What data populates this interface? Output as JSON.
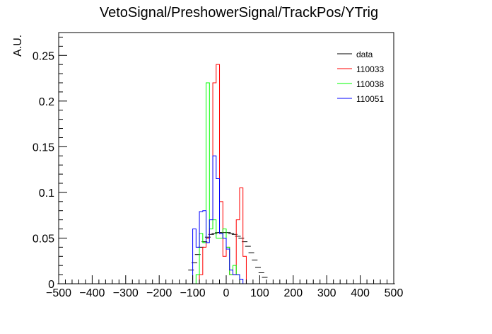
{
  "chart_data": {
    "type": "histogram",
    "title": "VetoSignal/PreshowerSignal/TrackPos/YTrig",
    "ylabel": "A.U.",
    "xlabel": "",
    "xlim": [
      -500,
      500
    ],
    "ylim": [
      0,
      0.275
    ],
    "bin_width": 10,
    "grid": false,
    "legend_position": "top-right",
    "xticks": [
      -500,
      -400,
      -300,
      -200,
      -100,
      0,
      100,
      200,
      300,
      400,
      500
    ],
    "xtick_labels": [
      "−500",
      "−400",
      "−300",
      "−200",
      "−100",
      "0",
      "100",
      "200",
      "300",
      "400",
      "500"
    ],
    "yticks": [
      0,
      0.05,
      0.1,
      0.15,
      0.2,
      0.25
    ],
    "ytick_labels": [
      "0",
      "0.05",
      "0.1",
      "0.15",
      "0.2",
      "0.25"
    ],
    "series": [
      {
        "name": "data",
        "color": "#000000",
        "style": "markers",
        "x": [
          -500,
          -490,
          -480,
          -470,
          -460,
          -450,
          -440,
          -430,
          -420,
          -410,
          -400,
          -390,
          -380,
          -370,
          -360,
          -350,
          -340,
          -330,
          -320,
          -310,
          -300,
          -290,
          -280,
          -270,
          -260,
          -250,
          -240,
          -230,
          -220,
          -210,
          -200,
          -190,
          -180,
          -170,
          -160,
          -150,
          -140,
          -130,
          -120,
          -110,
          -100,
          -90,
          -80,
          -70,
          -60,
          -50,
          -40,
          -30,
          -20,
          -10,
          0,
          10,
          20,
          30,
          40,
          50,
          60,
          70,
          80,
          90,
          100,
          110,
          120,
          130,
          140,
          150,
          160,
          170,
          180,
          190,
          200,
          210,
          220,
          230,
          240,
          250,
          260,
          270,
          280,
          290,
          300,
          310,
          320,
          330,
          340,
          350,
          360,
          370,
          380,
          390,
          400,
          410,
          420,
          430,
          440,
          450,
          460,
          470,
          480,
          490
        ],
        "values": [
          0,
          0,
          0,
          0,
          0,
          0,
          0,
          0,
          0,
          0,
          0,
          0,
          0,
          0,
          0,
          0,
          0,
          0,
          0,
          0,
          0,
          0,
          0,
          0,
          0,
          0,
          0,
          0,
          0,
          0,
          0,
          0,
          0,
          0,
          0,
          0,
          0,
          0,
          0,
          0.015,
          0.023,
          0.032,
          0.04,
          0.046,
          0.051,
          0.054,
          0.055,
          0.056,
          0.056,
          0.056,
          0.056,
          0.055,
          0.054,
          0.052,
          0.05,
          0.046,
          0.041,
          0.034,
          0.026,
          0.018,
          0.012,
          0.007,
          0,
          0,
          0,
          0,
          0,
          0,
          0,
          0,
          0,
          0,
          0,
          0,
          0,
          0,
          0,
          0,
          0,
          0,
          0,
          0,
          0,
          0,
          0,
          0,
          0,
          0,
          0,
          0,
          0,
          0,
          0,
          0,
          0,
          0,
          0,
          0,
          0,
          0
        ]
      },
      {
        "name": "110033",
        "color": "#ff0000",
        "style": "step",
        "x_start": -100,
        "values": [
          0,
          0,
          0.01,
          0.04,
          0.05,
          0.06,
          0.22,
          0.24,
          0.09,
          0.03,
          0.04,
          0.01,
          0.01,
          0.07,
          0.105,
          0.03,
          0,
          0,
          0,
          0
        ]
      },
      {
        "name": "110038",
        "color": "#00ff00",
        "style": "step",
        "x_start": -100,
        "values": [
          0,
          0.01,
          0.055,
          0.045,
          0.22,
          0.06,
          0.07,
          0.05,
          0.05,
          0.06,
          0.04,
          0.01,
          0.02,
          0.01,
          0,
          0,
          0,
          0,
          0,
          0
        ]
      },
      {
        "name": "110051",
        "color": "#0000ff",
        "style": "step",
        "x_start": -100,
        "values": [
          0.06,
          0.04,
          0.079,
          0.08,
          0.045,
          0.07,
          0.14,
          0.115,
          0.055,
          0.05,
          0.038,
          0.015,
          0.01,
          0.01,
          0.005,
          0,
          0,
          0,
          0,
          0
        ]
      }
    ]
  }
}
